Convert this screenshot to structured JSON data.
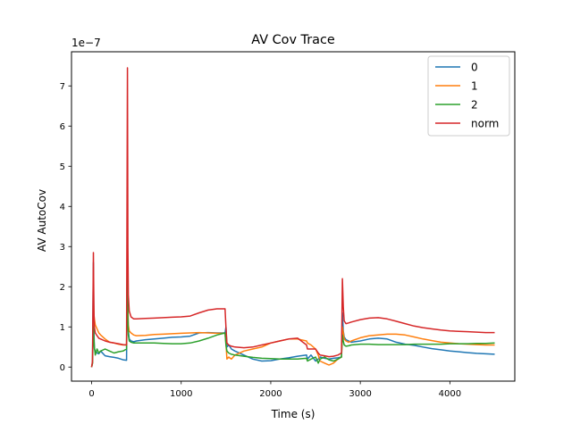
{
  "chart_data": {
    "type": "line",
    "title": "AV Cov Trace",
    "xlabel": "Time (s)",
    "ylabel": "AV AutoCov",
    "offset_label": "1e−7",
    "scale": 1e-07,
    "xlim": [
      -225,
      4725
    ],
    "ylim": [
      -0.35,
      7.85
    ],
    "xticks": [
      0,
      1000,
      2000,
      3000,
      4000
    ],
    "yticks": [
      0,
      1,
      2,
      3,
      4,
      5,
      6,
      7
    ],
    "legend_position": "upper right",
    "series": [
      {
        "name": "0",
        "color": "#1f77b4",
        "x": [
          0,
          10,
          20,
          25,
          30,
          40,
          60,
          80,
          100,
          150,
          200,
          250,
          300,
          350,
          390,
          400,
          405,
          410,
          420,
          440,
          470,
          500,
          600,
          700,
          800,
          900,
          1000,
          1100,
          1200,
          1300,
          1400,
          1490,
          1500,
          1510,
          1530,
          1560,
          1600,
          1700,
          1800,
          1900,
          2000,
          2100,
          2200,
          2300,
          2400,
          2410,
          2450,
          2500,
          2530,
          2550,
          2600,
          2650,
          2700,
          2750,
          2790,
          2800,
          2810,
          2820,
          2840,
          2870,
          2900,
          3000,
          3100,
          3200,
          3300,
          3400,
          3500,
          3600,
          3700,
          3800,
          3900,
          4000,
          4100,
          4200,
          4300,
          4400,
          4500
        ],
        "values": [
          0.0,
          0.1,
          2.6,
          0.9,
          0.45,
          0.4,
          0.35,
          0.33,
          0.4,
          0.28,
          0.26,
          0.24,
          0.22,
          0.18,
          0.17,
          3.4,
          1.4,
          0.9,
          0.7,
          0.65,
          0.63,
          0.65,
          0.68,
          0.7,
          0.72,
          0.74,
          0.75,
          0.77,
          0.85,
          0.86,
          0.85,
          0.85,
          1.0,
          0.5,
          0.55,
          0.45,
          0.4,
          0.3,
          0.2,
          0.15,
          0.16,
          0.2,
          0.23,
          0.27,
          0.3,
          0.2,
          0.3,
          0.15,
          0.2,
          0.25,
          0.22,
          0.2,
          0.22,
          0.23,
          0.25,
          1.35,
          0.9,
          0.75,
          0.68,
          0.65,
          0.62,
          0.65,
          0.7,
          0.72,
          0.7,
          0.62,
          0.57,
          0.54,
          0.5,
          0.46,
          0.43,
          0.4,
          0.38,
          0.36,
          0.34,
          0.33,
          0.32
        ]
      },
      {
        "name": "1",
        "color": "#ff7f0e",
        "x": [
          0,
          10,
          20,
          25,
          30,
          40,
          60,
          80,
          100,
          150,
          200,
          250,
          300,
          350,
          390,
          400,
          405,
          410,
          420,
          440,
          470,
          500,
          600,
          700,
          800,
          900,
          1000,
          1100,
          1200,
          1300,
          1400,
          1490,
          1500,
          1510,
          1530,
          1560,
          1600,
          1700,
          1800,
          1900,
          2000,
          2100,
          2200,
          2300,
          2400,
          2410,
          2450,
          2500,
          2530,
          2550,
          2600,
          2650,
          2700,
          2750,
          2790,
          2800,
          2810,
          2820,
          2840,
          2870,
          2900,
          3000,
          3100,
          3200,
          3300,
          3400,
          3500,
          3600,
          3700,
          3800,
          3900,
          4000,
          4100,
          4200,
          4300,
          4400,
          4500
        ],
        "values": [
          0.0,
          0.1,
          1.8,
          1.3,
          1.2,
          1.05,
          0.95,
          0.85,
          0.8,
          0.7,
          0.62,
          0.6,
          0.57,
          0.55,
          0.55,
          2.9,
          1.5,
          1.05,
          0.9,
          0.85,
          0.8,
          0.78,
          0.79,
          0.81,
          0.82,
          0.83,
          0.84,
          0.85,
          0.86,
          0.85,
          0.84,
          0.84,
          0.6,
          0.2,
          0.25,
          0.2,
          0.3,
          0.4,
          0.45,
          0.5,
          0.6,
          0.65,
          0.7,
          0.7,
          0.65,
          0.6,
          0.55,
          0.45,
          0.3,
          0.15,
          0.1,
          0.05,
          0.1,
          0.2,
          0.25,
          1.0,
          0.85,
          0.7,
          0.65,
          0.62,
          0.65,
          0.73,
          0.78,
          0.8,
          0.82,
          0.82,
          0.8,
          0.75,
          0.7,
          0.66,
          0.62,
          0.6,
          0.58,
          0.57,
          0.56,
          0.55,
          0.55
        ]
      },
      {
        "name": "2",
        "color": "#2ca02c",
        "x": [
          0,
          10,
          20,
          25,
          30,
          40,
          60,
          80,
          100,
          150,
          200,
          250,
          300,
          350,
          390,
          400,
          405,
          410,
          420,
          440,
          470,
          500,
          600,
          700,
          800,
          900,
          1000,
          1100,
          1200,
          1300,
          1400,
          1490,
          1500,
          1510,
          1530,
          1560,
          1600,
          1700,
          1800,
          1900,
          2000,
          2100,
          2200,
          2300,
          2400,
          2410,
          2450,
          2500,
          2530,
          2550,
          2600,
          2650,
          2700,
          2750,
          2790,
          2800,
          2810,
          2820,
          2840,
          2870,
          2900,
          3000,
          3100,
          3200,
          3300,
          3400,
          3500,
          3600,
          3700,
          3800,
          3900,
          4000,
          4100,
          4200,
          4300,
          4400,
          4500
        ],
        "values": [
          0.0,
          0.1,
          1.0,
          0.7,
          0.5,
          0.3,
          0.45,
          0.35,
          0.4,
          0.45,
          0.4,
          0.35,
          0.38,
          0.4,
          0.45,
          2.5,
          1.2,
          0.8,
          0.65,
          0.62,
          0.6,
          0.6,
          0.6,
          0.6,
          0.59,
          0.58,
          0.58,
          0.6,
          0.65,
          0.72,
          0.8,
          0.85,
          0.55,
          0.4,
          0.35,
          0.32,
          0.3,
          0.27,
          0.24,
          0.22,
          0.21,
          0.2,
          0.2,
          0.2,
          0.22,
          0.15,
          0.2,
          0.25,
          0.1,
          0.2,
          0.25,
          0.18,
          0.15,
          0.2,
          0.25,
          0.8,
          0.65,
          0.55,
          0.52,
          0.53,
          0.55,
          0.57,
          0.57,
          0.56,
          0.56,
          0.56,
          0.56,
          0.57,
          0.57,
          0.57,
          0.57,
          0.58,
          0.58,
          0.58,
          0.59,
          0.59,
          0.6
        ]
      },
      {
        "name": "norm",
        "color": "#d62728",
        "x": [
          0,
          10,
          20,
          25,
          30,
          40,
          60,
          80,
          100,
          150,
          200,
          250,
          300,
          350,
          390,
          400,
          405,
          410,
          420,
          440,
          470,
          500,
          600,
          700,
          800,
          900,
          1000,
          1100,
          1200,
          1300,
          1400,
          1490,
          1500,
          1510,
          1530,
          1560,
          1600,
          1700,
          1800,
          1900,
          2000,
          2100,
          2200,
          2300,
          2400,
          2410,
          2450,
          2500,
          2530,
          2550,
          2600,
          2650,
          2700,
          2750,
          2790,
          2800,
          2810,
          2820,
          2840,
          2870,
          2900,
          3000,
          3100,
          3200,
          3300,
          3400,
          3500,
          3600,
          3700,
          3800,
          3900,
          4000,
          4100,
          4200,
          4300,
          4400,
          4500
        ],
        "values": [
          0.0,
          0.15,
          2.85,
          1.4,
          1.0,
          0.85,
          0.78,
          0.72,
          0.7,
          0.65,
          0.62,
          0.6,
          0.58,
          0.56,
          0.55,
          7.45,
          3.0,
          1.8,
          1.4,
          1.25,
          1.2,
          1.2,
          1.21,
          1.22,
          1.23,
          1.24,
          1.25,
          1.27,
          1.35,
          1.42,
          1.45,
          1.45,
          1.0,
          0.6,
          0.55,
          0.52,
          0.5,
          0.48,
          0.5,
          0.55,
          0.6,
          0.65,
          0.7,
          0.72,
          0.55,
          0.45,
          0.45,
          0.45,
          0.35,
          0.3,
          0.28,
          0.26,
          0.27,
          0.3,
          0.35,
          2.2,
          1.5,
          1.15,
          1.08,
          1.1,
          1.12,
          1.18,
          1.22,
          1.23,
          1.2,
          1.14,
          1.08,
          1.02,
          0.98,
          0.95,
          0.92,
          0.9,
          0.89,
          0.88,
          0.87,
          0.86,
          0.86
        ]
      }
    ]
  }
}
